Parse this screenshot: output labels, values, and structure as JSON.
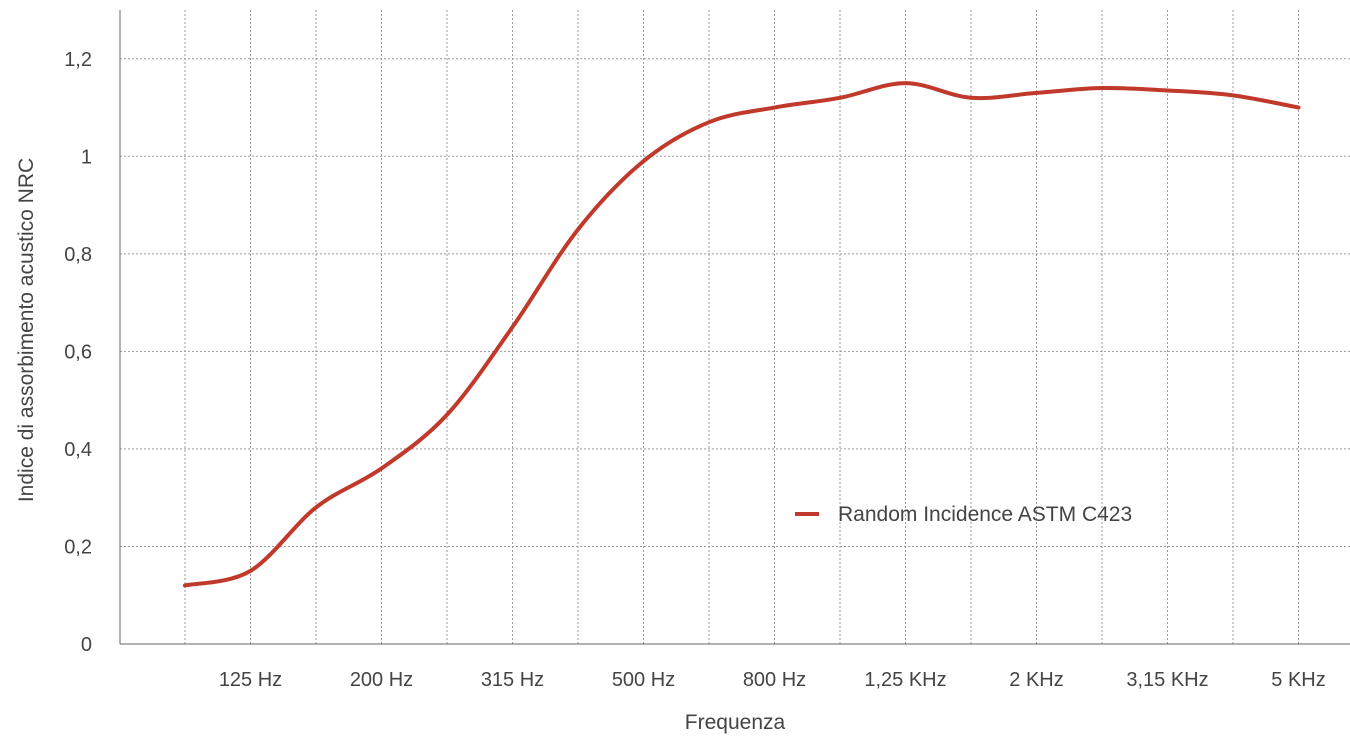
{
  "chart_data": {
    "type": "line",
    "title": "",
    "xlabel": "Frequenza",
    "ylabel": "Indice di assorbimento  acustico  NRC",
    "categories": [
      "125 Hz",
      "200 Hz",
      "315 Hz",
      "500 Hz",
      "800 Hz",
      "1,25 KHz",
      "2 KHz",
      "3,15 KHz",
      "5 KHz"
    ],
    "y_tick_labels": [
      "0",
      "0,2",
      "0,4",
      "0,6",
      "0,8",
      "1",
      "1,2"
    ],
    "y_ticks": [
      0,
      0.2,
      0.4,
      0.6,
      0.8,
      1.0,
      1.2
    ],
    "ylim": [
      0,
      1.3
    ],
    "grid": true,
    "legend_position": "center-right",
    "series": [
      {
        "name": "Random Incidence ASTM C423",
        "color": "#c0392b",
        "x": [
          "100 Hz",
          "125 Hz",
          "160 Hz",
          "200 Hz",
          "250 Hz",
          "315 Hz",
          "400 Hz",
          "500 Hz",
          "630 Hz",
          "800 Hz",
          "1 KHz",
          "1,25 KHz",
          "1,6 KHz",
          "2 KHz",
          "2,5 KHz",
          "3,15 KHz",
          "4 KHz",
          "5 KHz"
        ],
        "values": [
          0.12,
          0.15,
          0.28,
          0.36,
          0.47,
          0.65,
          0.85,
          0.99,
          1.07,
          1.1,
          1.12,
          1.15,
          1.12,
          1.13,
          1.14,
          1.135,
          1.125,
          1.1
        ]
      }
    ]
  }
}
